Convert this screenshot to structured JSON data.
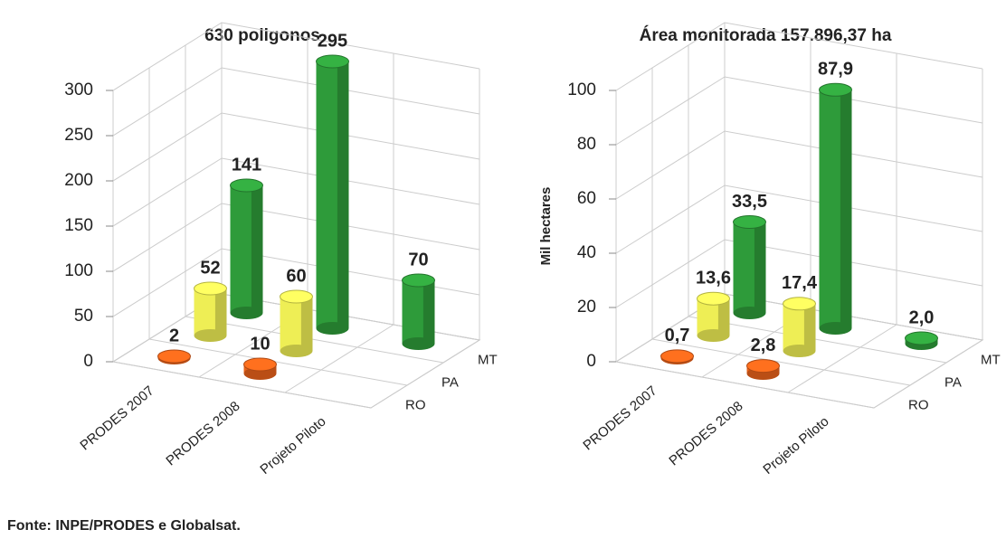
{
  "chart_data": [
    {
      "type": "bar3d",
      "title": "630 poligonos",
      "categories": [
        "PRODES 2007",
        "PRODES 2008",
        "Projeto Piloto"
      ],
      "series": [
        {
          "name": "RO",
          "color": "#e8611a",
          "values": [
            2,
            10,
            null
          ]
        },
        {
          "name": "PA",
          "color": "#eeee55",
          "values": [
            52,
            60,
            null
          ]
        },
        {
          "name": "MT",
          "color": "#2e9b3a",
          "values": [
            141,
            295,
            70
          ]
        }
      ],
      "ylim": [
        0,
        300
      ],
      "yticks": [
        0,
        50,
        100,
        150,
        200,
        250,
        300
      ],
      "grid": true
    },
    {
      "type": "bar3d",
      "title": "Área monitorada  157.896,37  ha",
      "y_label": "Mil hectares",
      "categories": [
        "PRODES 2007",
        "PRODES 2008",
        "Projeto Piloto"
      ],
      "series": [
        {
          "name": "RO",
          "color": "#e8611a",
          "values": [
            0.7,
            2.8,
            null
          ],
          "value_labels": [
            "0,7",
            "2,8",
            null
          ]
        },
        {
          "name": "PA",
          "color": "#eeee55",
          "values": [
            13.6,
            17.4,
            null
          ],
          "value_labels": [
            "13,6",
            "17,4",
            null
          ]
        },
        {
          "name": "MT",
          "color": "#2e9b3a",
          "values": [
            33.5,
            87.9,
            2.0
          ],
          "value_labels": [
            "33,5",
            "87,9",
            "2,0"
          ]
        }
      ],
      "ylim": [
        0,
        100
      ],
      "yticks": [
        0,
        20,
        40,
        60,
        80,
        100
      ],
      "grid": true
    }
  ],
  "source": "Fonte: INPE/PRODES e Globalsat."
}
